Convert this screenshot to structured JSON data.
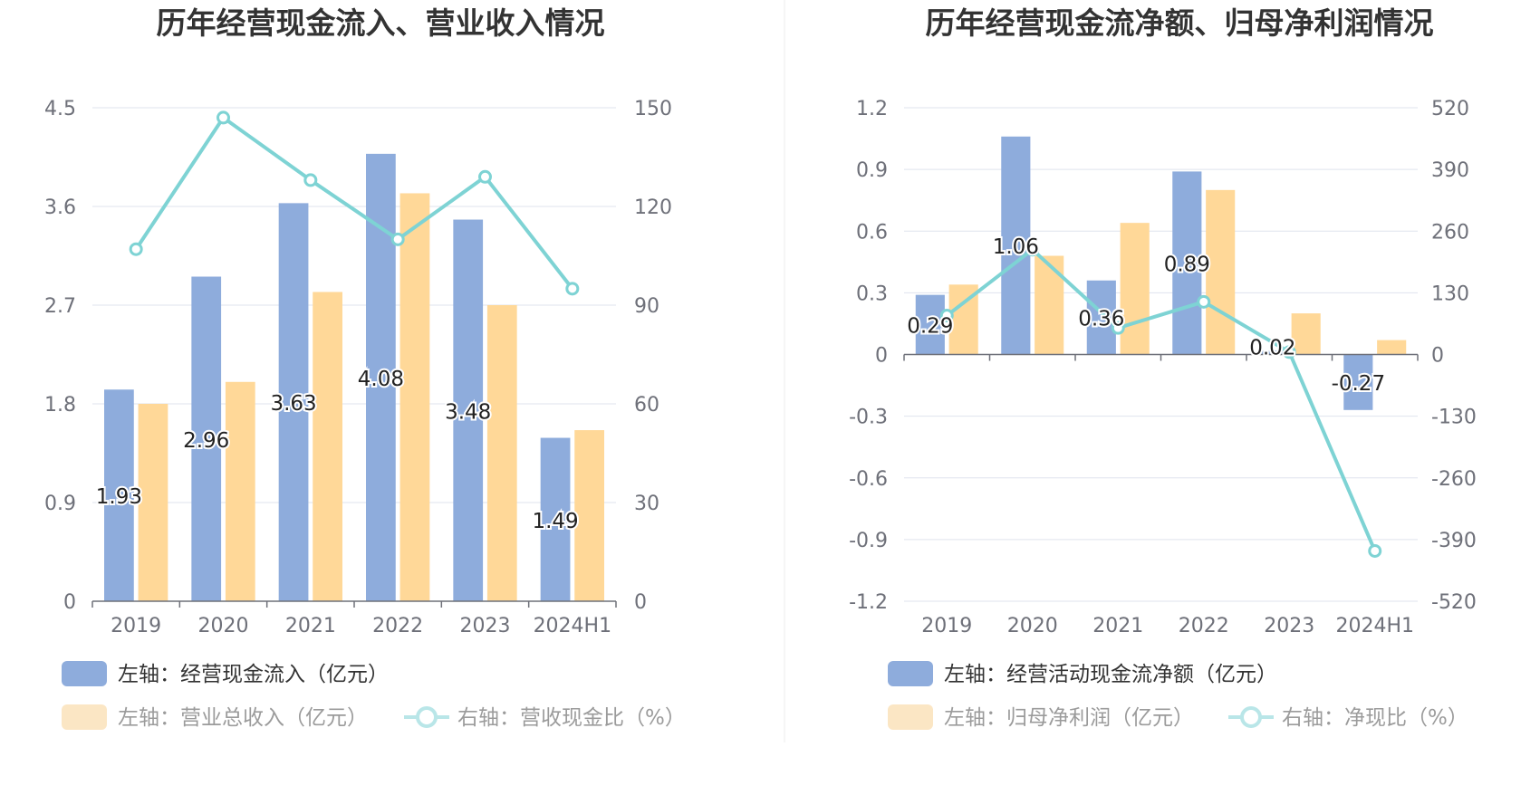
{
  "colors": {
    "blue": "#8eacdc",
    "orange": "#ffd898",
    "line": "#7ed3d4",
    "blue_faded": "#8eacdc",
    "orange_faded": "#fbe6c4",
    "line_faded": "#b9e6e8",
    "grid": "#dfe3ee",
    "axis": "#6e7079"
  },
  "chart_data": [
    {
      "type": "bar+line",
      "title": "历年经营现金流入、营业收入情况",
      "categories": [
        "2019",
        "2020",
        "2021",
        "2022",
        "2023",
        "2024H1"
      ],
      "left_axis": {
        "ticks": [
          "0",
          "0.9",
          "1.8",
          "2.7",
          "3.6",
          "4.5"
        ],
        "min": 0,
        "max": 4.5
      },
      "right_axis": {
        "ticks": [
          "0",
          "30",
          "60",
          "90",
          "120",
          "150"
        ],
        "min": 0,
        "max": 150
      },
      "series": [
        {
          "name": "左轴：经营现金流入（亿元）",
          "type": "bar",
          "axis": "left",
          "values": [
            1.93,
            2.96,
            3.63,
            4.08,
            3.48,
            1.49
          ],
          "labels": [
            "1.93",
            "2.96",
            "3.63",
            "4.08",
            "3.48",
            "1.49"
          ]
        },
        {
          "name": "左轴：营业总收入（亿元）",
          "type": "bar",
          "axis": "left",
          "values": [
            1.8,
            2.0,
            2.82,
            3.72,
            2.7,
            1.56
          ]
        },
        {
          "name": "右轴：营收现金比（%）",
          "type": "line",
          "axis": "right",
          "values": [
            107,
            147,
            128,
            110,
            129,
            95
          ]
        }
      ],
      "legend": [
        "左轴：经营现金流入（亿元）",
        "左轴：营业总收入（亿元）",
        "右轴：营收现金比（%）"
      ]
    },
    {
      "type": "bar+line",
      "title": "历年经营现金流净额、归母净利润情况",
      "categories": [
        "2019",
        "2020",
        "2021",
        "2022",
        "2023",
        "2024H1"
      ],
      "left_axis": {
        "ticks": [
          "-1.2",
          "-0.9",
          "-0.6",
          "-0.3",
          "0",
          "0.3",
          "0.6",
          "0.9",
          "1.2"
        ],
        "min": -1.2,
        "max": 1.2
      },
      "right_axis": {
        "ticks": [
          "-520",
          "-390",
          "-260",
          "-130",
          "0",
          "130",
          "260",
          "390",
          "520"
        ],
        "min": -520,
        "max": 520
      },
      "series": [
        {
          "name": "左轴：经营活动现金流净额（亿元）",
          "type": "bar",
          "axis": "left",
          "values": [
            0.29,
            1.06,
            0.36,
            0.89,
            0.02,
            -0.27
          ],
          "labels": [
            "0.29",
            "1.06",
            "0.36",
            "0.89",
            "0.02",
            "-0.27"
          ]
        },
        {
          "name": "左轴：归母净利润（亿元）",
          "type": "bar",
          "axis": "left",
          "values": [
            0.34,
            0.48,
            0.64,
            0.8,
            0.2,
            0.07
          ]
        },
        {
          "name": "右轴：净现比（%）",
          "type": "line",
          "axis": "right",
          "values": [
            82,
            221,
            56,
            111,
            5,
            -414
          ]
        }
      ],
      "legend": [
        "左轴：经营活动现金流净额（亿元）",
        "左轴：归母净利润（亿元）",
        "右轴：净现比（%）"
      ]
    }
  ]
}
